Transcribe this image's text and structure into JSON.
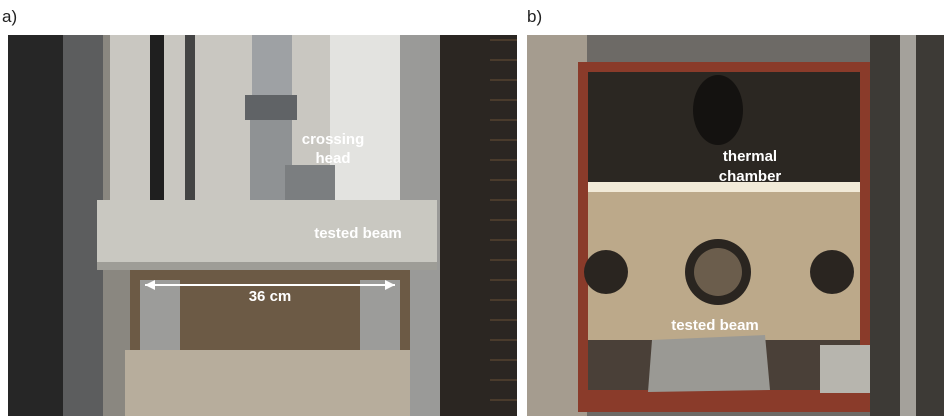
{
  "panels": [
    {
      "label": "a)",
      "annotations": {
        "crossing_head": [
          "crossing",
          "head"
        ],
        "tested_beam": "tested beam",
        "span": "36 cm"
      }
    },
    {
      "label": "b)",
      "annotations": {
        "thermal_chamber": [
          "thermal",
          "chamber"
        ],
        "tested_beam": "tested beam"
      }
    }
  ]
}
